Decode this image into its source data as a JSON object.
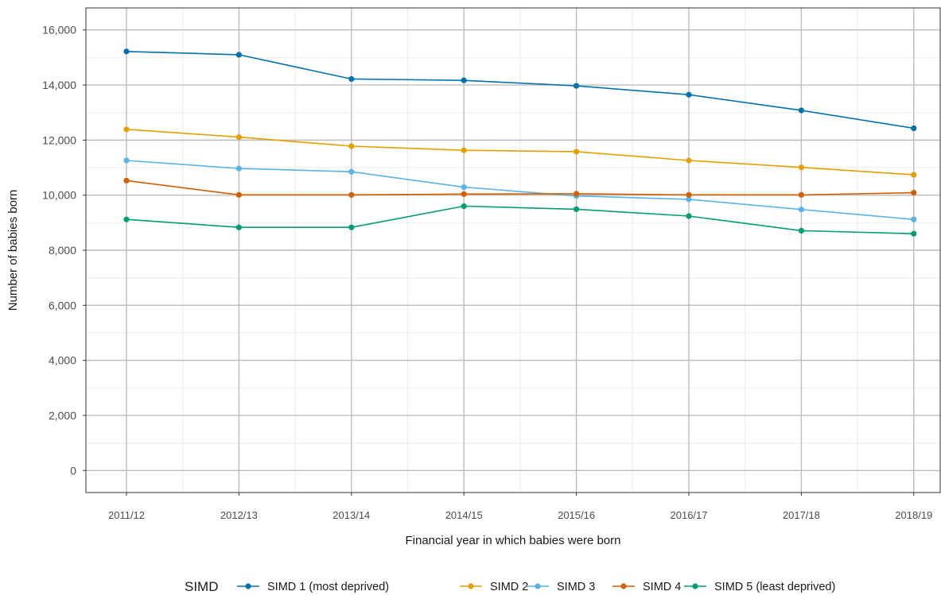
{
  "chart_data": {
    "type": "line",
    "x_label": "Financial year in which babies were born",
    "y_label": "Number of babies born",
    "categories": [
      "2011/12",
      "2012/13",
      "2013/14",
      "2014/15",
      "2015/16",
      "2016/17",
      "2017/18",
      "2018/19"
    ],
    "y_ticks": [
      "0",
      "2,000",
      "4,000",
      "6,000",
      "8,000",
      "10,000",
      "12,000",
      "14,000",
      "16,000"
    ],
    "y_tick_values": [
      0,
      2000,
      4000,
      6000,
      8000,
      10000,
      12000,
      14000,
      16000
    ],
    "ylim": [
      -800,
      16800
    ],
    "grid": true,
    "legend_title": "SIMD",
    "legend_position": "bottom",
    "series": [
      {
        "name": "SIMD 1 (most deprived)",
        "color": "#0072B2",
        "values": [
          15220,
          15100,
          14220,
          14170,
          13970,
          13650,
          13080,
          12430
        ]
      },
      {
        "name": "SIMD 2",
        "color": "#E69F00",
        "values": [
          12390,
          12110,
          11780,
          11630,
          11580,
          11260,
          11010,
          10740
        ]
      },
      {
        "name": "SIMD 3",
        "color": "#56B4E9",
        "values": [
          11260,
          10970,
          10850,
          10290,
          9970,
          9850,
          9480,
          9120
        ]
      },
      {
        "name": "SIMD 4",
        "color": "#D55E00",
        "values": [
          10530,
          10010,
          10010,
          10040,
          10050,
          10010,
          10010,
          10090
        ]
      },
      {
        "name": "SIMD 5 (least deprived)",
        "color": "#009E73",
        "values": [
          9120,
          8830,
          8830,
          9600,
          9490,
          9240,
          8710,
          8600
        ]
      }
    ]
  }
}
